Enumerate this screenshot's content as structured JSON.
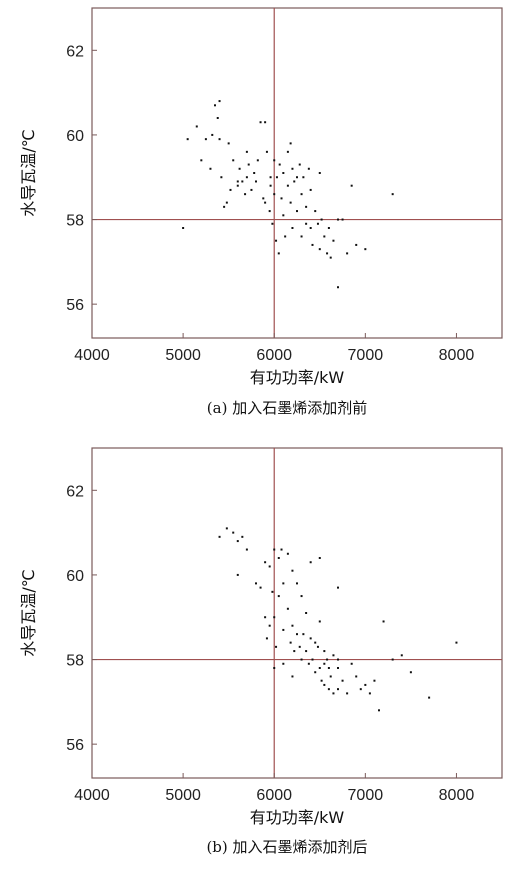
{
  "chart_data": [
    {
      "type": "scatter",
      "caption": "(a) 加入石墨烯添加剂前",
      "xlabel": "有功功率/kW",
      "ylabel": "水导瓦温/℃",
      "xlim": [
        4000,
        8500
      ],
      "ylim": [
        55.2,
        63
      ],
      "xticks": [
        4000,
        5000,
        6000,
        7000,
        8000
      ],
      "yticks": [
        56,
        58,
        60,
        62
      ],
      "ref_x": 6000,
      "ref_y": 58,
      "colors": {
        "frame": "#7a5a5a",
        "ref_line": "#a05050",
        "point": "#111111"
      },
      "points": [
        [
          5000,
          57.8
        ],
        [
          5050,
          59.9
        ],
        [
          5150,
          60.2
        ],
        [
          5200,
          59.4
        ],
        [
          5250,
          59.9
        ],
        [
          5300,
          59.2
        ],
        [
          5320,
          60.0
        ],
        [
          5350,
          60.7
        ],
        [
          5380,
          60.4
        ],
        [
          5400,
          60.8
        ],
        [
          5400,
          59.9
        ],
        [
          5420,
          59.0
        ],
        [
          5450,
          58.3
        ],
        [
          5480,
          58.4
        ],
        [
          5500,
          59.8
        ],
        [
          5520,
          58.7
        ],
        [
          5550,
          59.4
        ],
        [
          5600,
          58.8
        ],
        [
          5620,
          59.2
        ],
        [
          5650,
          58.9
        ],
        [
          5680,
          58.6
        ],
        [
          5700,
          59.0
        ],
        [
          5720,
          59.3
        ],
        [
          5750,
          58.7
        ],
        [
          5780,
          59.1
        ],
        [
          5800,
          58.9
        ],
        [
          5820,
          59.4
        ],
        [
          5850,
          60.3
        ],
        [
          5880,
          58.5
        ],
        [
          5900,
          60.3
        ],
        [
          5900,
          58.4
        ],
        [
          5920,
          59.6
        ],
        [
          5950,
          58.2
        ],
        [
          5960,
          58.8
        ],
        [
          5980,
          57.9
        ],
        [
          6000,
          59.4
        ],
        [
          6000,
          58.6
        ],
        [
          6020,
          57.5
        ],
        [
          6030,
          59.0
        ],
        [
          6050,
          57.2
        ],
        [
          6060,
          59.3
        ],
        [
          6080,
          58.5
        ],
        [
          6100,
          59.1
        ],
        [
          6100,
          58.1
        ],
        [
          6120,
          57.6
        ],
        [
          6150,
          59.6
        ],
        [
          6150,
          58.8
        ],
        [
          6180,
          58.4
        ],
        [
          6200,
          59.2
        ],
        [
          6200,
          57.8
        ],
        [
          6220,
          58.9
        ],
        [
          6250,
          59.0
        ],
        [
          6250,
          58.2
        ],
        [
          6280,
          59.3
        ],
        [
          6300,
          58.6
        ],
        [
          6300,
          57.6
        ],
        [
          6320,
          59.0
        ],
        [
          6350,
          58.3
        ],
        [
          6350,
          57.9
        ],
        [
          6380,
          59.2
        ],
        [
          6400,
          58.7
        ],
        [
          6400,
          57.8
        ],
        [
          6420,
          57.4
        ],
        [
          6450,
          58.2
        ],
        [
          6480,
          57.9
        ],
        [
          6500,
          59.1
        ],
        [
          6500,
          57.3
        ],
        [
          6520,
          58.0
        ],
        [
          6550,
          57.6
        ],
        [
          6580,
          57.2
        ],
        [
          6600,
          57.8
        ],
        [
          6620,
          57.1
        ],
        [
          6650,
          57.5
        ],
        [
          6700,
          56.4
        ],
        [
          6700,
          58.0
        ],
        [
          6750,
          58.0
        ],
        [
          6800,
          57.2
        ],
        [
          6850,
          58.8
        ],
        [
          6900,
          57.4
        ],
        [
          7000,
          57.3
        ],
        [
          7300,
          58.6
        ],
        [
          5600,
          58.9
        ],
        [
          5700,
          59.6
        ],
        [
          6180,
          59.8
        ],
        [
          5960,
          59.0
        ]
      ]
    },
    {
      "type": "scatter",
      "caption": "(b) 加入石墨烯添加剂后",
      "xlabel": "有功功率/kW",
      "ylabel": "水导瓦温/℃",
      "xlim": [
        4000,
        8500
      ],
      "ylim": [
        55.2,
        63
      ],
      "xticks": [
        4000,
        5000,
        6000,
        7000,
        8000
      ],
      "yticks": [
        56,
        58,
        60,
        62
      ],
      "ref_x": 6000,
      "ref_y": 58,
      "colors": {
        "frame": "#7a5a5a",
        "ref_line": "#a05050",
        "point": "#111111"
      },
      "points": [
        [
          5400,
          60.9
        ],
        [
          5480,
          61.1
        ],
        [
          5550,
          61.0
        ],
        [
          5600,
          60.0
        ],
        [
          5650,
          60.9
        ],
        [
          5700,
          60.6
        ],
        [
          5800,
          59.8
        ],
        [
          5850,
          59.7
        ],
        [
          5900,
          60.3
        ],
        [
          5900,
          59.0
        ],
        [
          5920,
          58.5
        ],
        [
          5950,
          60.2
        ],
        [
          5950,
          58.8
        ],
        [
          5980,
          59.6
        ],
        [
          6000,
          60.6
        ],
        [
          6000,
          59.0
        ],
        [
          6020,
          58.3
        ],
        [
          6050,
          60.4
        ],
        [
          6050,
          59.5
        ],
        [
          6080,
          60.6
        ],
        [
          6100,
          59.8
        ],
        [
          6100,
          58.7
        ],
        [
          6150,
          60.5
        ],
        [
          6150,
          59.2
        ],
        [
          6180,
          58.4
        ],
        [
          6200,
          60.1
        ],
        [
          6200,
          58.8
        ],
        [
          6220,
          58.2
        ],
        [
          6250,
          59.8
        ],
        [
          6250,
          58.6
        ],
        [
          6280,
          58.3
        ],
        [
          6300,
          59.5
        ],
        [
          6300,
          58.0
        ],
        [
          6320,
          58.6
        ],
        [
          6350,
          59.1
        ],
        [
          6350,
          58.2
        ],
        [
          6380,
          57.9
        ],
        [
          6400,
          60.3
        ],
        [
          6400,
          58.5
        ],
        [
          6420,
          58.0
        ],
        [
          6450,
          57.7
        ],
        [
          6480,
          58.3
        ],
        [
          6500,
          58.9
        ],
        [
          6500,
          57.8
        ],
        [
          6520,
          57.5
        ],
        [
          6550,
          58.2
        ],
        [
          6550,
          57.4
        ],
        [
          6580,
          58.0
        ],
        [
          6600,
          57.8
        ],
        [
          6600,
          57.3
        ],
        [
          6620,
          57.6
        ],
        [
          6650,
          58.1
        ],
        [
          6650,
          57.2
        ],
        [
          6700,
          57.8
        ],
        [
          6700,
          57.3
        ],
        [
          6750,
          57.5
        ],
        [
          6800,
          57.2
        ],
        [
          6850,
          57.9
        ],
        [
          6900,
          57.6
        ],
        [
          6950,
          57.3
        ],
        [
          7000,
          57.4
        ],
        [
          7050,
          57.2
        ],
        [
          7100,
          57.5
        ],
        [
          7150,
          56.8
        ],
        [
          7200,
          58.9
        ],
        [
          7300,
          58.0
        ],
        [
          7400,
          58.1
        ],
        [
          7500,
          57.7
        ],
        [
          7700,
          57.1
        ],
        [
          8000,
          58.4
        ],
        [
          6000,
          57.8
        ],
        [
          6100,
          57.9
        ],
        [
          6200,
          57.6
        ],
        [
          6450,
          58.4
        ],
        [
          6550,
          57.9
        ],
        [
          6700,
          58.0
        ],
        [
          5600,
          60.8
        ],
        [
          6500,
          60.4
        ],
        [
          6700,
          59.7
        ]
      ]
    }
  ]
}
